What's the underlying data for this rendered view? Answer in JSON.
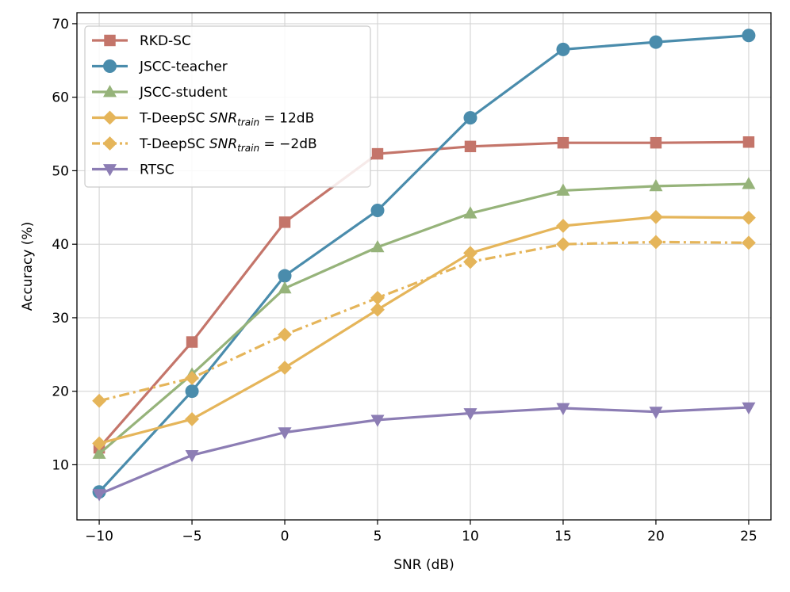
{
  "chart_data": {
    "type": "line",
    "title": "",
    "xlabel": "SNR (dB)",
    "ylabel": "Accuracy (%)",
    "x": [
      -10,
      -5,
      0,
      5,
      10,
      15,
      20,
      25
    ],
    "x_tick_labels": [
      "−10",
      "−5",
      "0",
      "5",
      "10",
      "15",
      "20",
      "25"
    ],
    "y_tick_labels": [
      "10",
      "20",
      "30",
      "40",
      "50",
      "60",
      "70"
    ],
    "xlim": [
      -11.2,
      26.2
    ],
    "ylim": [
      2.5,
      71.5
    ],
    "grid": true,
    "legend_position": "upper-left",
    "series": [
      {
        "name": "RKD-SC",
        "label_main": "RKD-SC",
        "label_math": "",
        "color": "#c4756a",
        "marker": "square",
        "linestyle": "solid",
        "values": [
          12.3,
          26.7,
          43.0,
          52.3,
          53.3,
          53.8,
          53.8,
          53.9
        ]
      },
      {
        "name": "JSCC-teacher",
        "label_main": "JSCC-teacher",
        "label_math": "",
        "color": "#4a8cac",
        "marker": "circle",
        "linestyle": "solid",
        "values": [
          6.3,
          20.0,
          35.7,
          44.6,
          57.2,
          66.5,
          67.5,
          68.4
        ]
      },
      {
        "name": "JSCC-student",
        "label_main": "JSCC-student",
        "label_math": "",
        "color": "#96b37a",
        "marker": "triangle-up",
        "linestyle": "solid",
        "values": [
          11.5,
          22.3,
          34.0,
          39.6,
          44.2,
          47.3,
          47.9,
          48.2
        ]
      },
      {
        "name": "T-DeepSC SNR_train = 12dB",
        "label_main": "T-DeepSC ",
        "label_math": "SNR",
        "label_sub": "train",
        "label_rest": " = 12dB",
        "color": "#e5b55a",
        "marker": "diamond",
        "linestyle": "solid",
        "values": [
          12.9,
          16.2,
          23.2,
          31.1,
          38.8,
          42.5,
          43.7,
          43.6
        ]
      },
      {
        "name": "T-DeepSC SNR_train = −2dB",
        "label_main": "T-DeepSC ",
        "label_math": "SNR",
        "label_sub": "train",
        "label_rest": " = −2dB",
        "color": "#e5b55a",
        "marker": "diamond",
        "linestyle": "dashdot",
        "values": [
          18.7,
          21.8,
          27.7,
          32.7,
          37.6,
          40.0,
          40.3,
          40.2
        ]
      },
      {
        "name": "RTSC",
        "label_main": "RTSC",
        "label_math": "",
        "color": "#8c7db4",
        "marker": "triangle-down",
        "linestyle": "solid",
        "values": [
          6.0,
          11.3,
          14.4,
          16.1,
          17.0,
          17.7,
          17.2,
          17.8
        ]
      }
    ]
  }
}
